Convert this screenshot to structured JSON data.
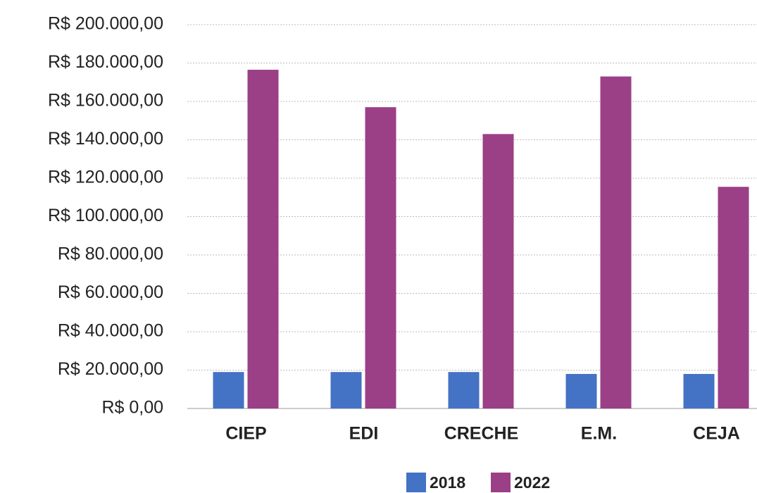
{
  "chart_data": {
    "type": "bar",
    "categories": [
      "CIEP",
      "EDI",
      "CRECHE",
      "E.M.",
      "CEJA"
    ],
    "series": [
      {
        "name": "2018",
        "color": "#4472c4",
        "values": [
          19000,
          19000,
          19000,
          18000,
          18000
        ]
      },
      {
        "name": "2022",
        "color": "#9b3f87",
        "values": [
          176500,
          157000,
          143000,
          173000,
          115500
        ]
      }
    ],
    "ylim": [
      0,
      200000
    ],
    "yticks": [
      {
        "value": 0,
        "label": "R$ 0,00"
      },
      {
        "value": 20000,
        "label": "R$ 20.000,00"
      },
      {
        "value": 40000,
        "label": "R$ 40.000,00"
      },
      {
        "value": 60000,
        "label": "R$ 60.000,00"
      },
      {
        "value": 80000,
        "label": "R$ 80.000,00"
      },
      {
        "value": 100000,
        "label": "R$ 100.000,00"
      },
      {
        "value": 120000,
        "label": "R$ 120.000,00"
      },
      {
        "value": 140000,
        "label": "R$ 140.000,00"
      },
      {
        "value": 160000,
        "label": "R$ 160.000,00"
      },
      {
        "value": 180000,
        "label": "R$ 180.000,00"
      },
      {
        "value": 200000,
        "label": "R$ 200.000,00"
      }
    ],
    "grid": true,
    "legend": "bottom"
  }
}
